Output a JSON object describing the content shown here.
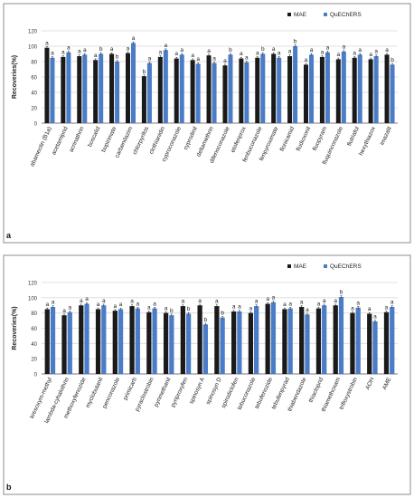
{
  "colors": {
    "mae": "#1a1a1a",
    "quechers": "#4a7cc7",
    "grid": "#d9d9d9",
    "axis": "#595959",
    "border": "#8c8c8c"
  },
  "chart_data": [
    {
      "type": "bar",
      "panel_label": "a",
      "ylabel": "Recoveries(%)",
      "ylim": [
        0,
        120
      ],
      "yticks": [
        0,
        20,
        40,
        60,
        80,
        100,
        120
      ],
      "grid": true,
      "legend": "top-right",
      "categories": [
        "abamectin (B1a)",
        "acetamiprid",
        "acrinathrin",
        "boscalid",
        "bupirimate",
        "carbendazim",
        "chlorpyrifos",
        "clothianidin",
        "cyproconazole",
        "cyprodinil",
        "deltamethrin",
        "difenoconazole",
        "etofenprox",
        "fenbuconazole",
        "fenpyroximate",
        "flonicamid",
        "fludioxonil",
        "fluopyram",
        "fluquinconazole",
        "flutriafol",
        "hexythiazox",
        "imazalil"
      ],
      "series": [
        {
          "name": "MAE",
          "values": [
            98,
            86,
            87,
            82,
            90,
            91,
            61,
            86,
            84,
            82,
            88,
            75,
            84,
            85,
            90,
            87,
            76,
            86,
            83,
            85,
            83,
            89
          ],
          "labels": [
            "a",
            "a",
            "a",
            "a",
            "a",
            "a",
            "b",
            "a",
            "a",
            "a",
            "a",
            "a",
            "a",
            "a",
            "a",
            "a",
            "a",
            "a",
            "a",
            "a",
            "a",
            "a"
          ]
        },
        {
          "name": "QuEChERS",
          "values": [
            85,
            92,
            89,
            90,
            80,
            104,
            78,
            95,
            89,
            77,
            78,
            89,
            79,
            90,
            85,
            100,
            89,
            92,
            93,
            89,
            87,
            76
          ],
          "labels": [
            "a",
            "a",
            "a",
            "b",
            "b",
            "a",
            "a",
            "a",
            "a",
            "a",
            "a",
            "b",
            "a",
            "b",
            "a",
            "b",
            "a",
            "a",
            "a",
            "a",
            "a",
            "b"
          ]
        }
      ]
    },
    {
      "type": "bar",
      "panel_label": "b",
      "ylabel": "Recoveries(%)",
      "ylim": [
        0,
        120
      ],
      "yticks": [
        0,
        20,
        40,
        60,
        80,
        100,
        120
      ],
      "grid": true,
      "legend": "top-right",
      "categories": [
        "kresoxym-methyl",
        "lambda-cyhalothrin",
        "methoxyfenozide",
        "myclobutanil",
        "penconazole",
        "primicarb",
        "pyraclostrobin",
        "pyrimethanil",
        "pyriproxyfen",
        "spinosyn A",
        "spinosyn D",
        "spirodiclofen",
        "tebuconazole",
        "tebufenozide",
        "tebufenpyrad",
        "thiabendazole",
        "thiacloprid",
        "thiamethoxam",
        "trifloxystrobin",
        "AOH",
        "AME"
      ],
      "series": [
        {
          "name": "MAE",
          "values": [
            85,
            77,
            90,
            85,
            83,
            89,
            81,
            80,
            89,
            90,
            89,
            82,
            80,
            92,
            85,
            88,
            86,
            90,
            80,
            79,
            81
          ],
          "labels": [
            "a",
            "a",
            "a",
            "a",
            "a",
            "a",
            "a",
            "a",
            "a",
            "a",
            "a",
            "a",
            "a",
            "a",
            "a",
            "a",
            "a",
            "a",
            "a",
            "a",
            "a"
          ]
        },
        {
          "name": "QuEChERS",
          "values": [
            88,
            81,
            92,
            90,
            85,
            86,
            86,
            77,
            79,
            65,
            74,
            82,
            89,
            94,
            86,
            78,
            90,
            101,
            87,
            69,
            88
          ],
          "labels": [
            "a",
            "a",
            "a",
            "a",
            "a",
            "a",
            "a",
            "b",
            "b",
            "b",
            "b",
            "a",
            "a",
            "a",
            "a",
            "a",
            "a",
            "b",
            "a",
            "a",
            "a"
          ]
        }
      ]
    }
  ]
}
